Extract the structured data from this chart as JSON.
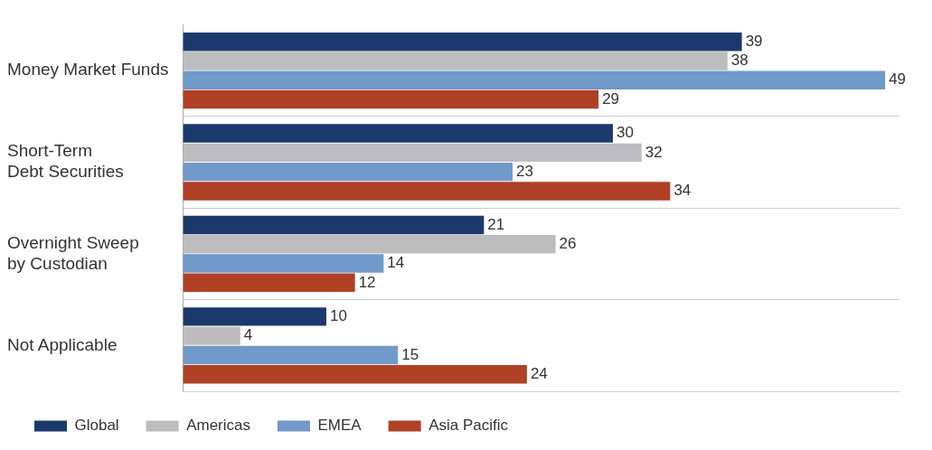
{
  "chart_data": {
    "type": "bar",
    "orientation": "horizontal",
    "categories": [
      "Money Market Funds",
      "Short-Term Debt Securities",
      "Overnight Sweep by Custodian",
      "Not Applicable"
    ],
    "series": [
      {
        "name": "Global",
        "color": "#1b3a6b",
        "values": [
          39,
          30,
          21,
          10
        ]
      },
      {
        "name": "Americas",
        "color": "#bdbdbf",
        "values": [
          38,
          32,
          26,
          4
        ]
      },
      {
        "name": "EMEA",
        "color": "#7199c9",
        "values": [
          49,
          23,
          14,
          15
        ]
      },
      {
        "name": "Asia Pacific",
        "color": "#b04026",
        "values": [
          29,
          34,
          12,
          24
        ]
      }
    ],
    "data_labels": true,
    "grid": "y",
    "legend": "bottom left"
  }
}
